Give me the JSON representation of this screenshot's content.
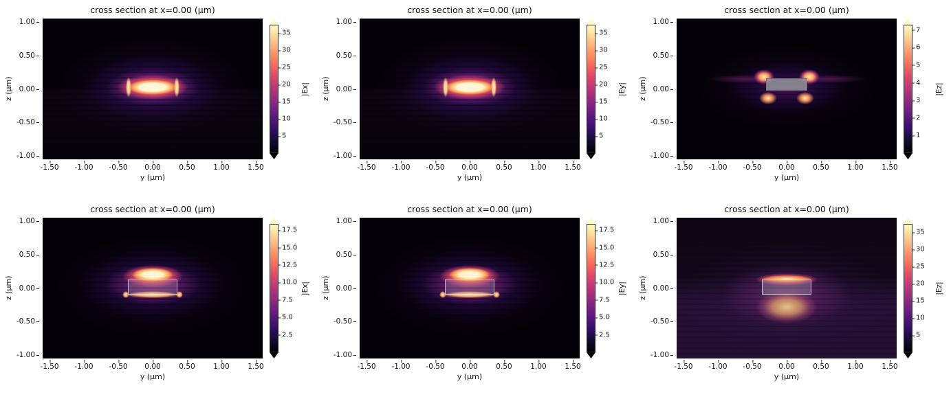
{
  "figure": {
    "background": "#ffffff",
    "rows": 2,
    "cols": 3,
    "colormap": "magma"
  },
  "chart_data": [
    {
      "type": "heatmap",
      "field": "Ex",
      "row": "top",
      "title": "cross section at x=0.00 (μm)",
      "xlabel": "y (μm)",
      "ylabel": "z (μm)",
      "colorbar_label": "|Ex|",
      "xlim": [
        -1.6,
        1.6
      ],
      "ylim": [
        -1.05,
        1.05
      ],
      "xtick_labels": [
        "-1.50",
        "-1.00",
        "-0.50",
        "0.00",
        "0.50",
        "1.00",
        "1.50"
      ],
      "ytick_labels": [
        "1.00",
        "0.50",
        "0.00",
        "-0.50",
        "-1.00"
      ],
      "colorbar_tick_labels": [
        "5",
        "10",
        "15",
        "20",
        "25",
        "30",
        "35"
      ],
      "colorbar_range": [
        0,
        37.5
      ],
      "colorbar_extend": "both",
      "colormap": "magma",
      "description": "Single bright horizontally elongated |Ex| mode lobe saturating near 37 centered at (y=0, z=0), thin vertical hot spots at the core side walls near y=±0.35 μm, faint horizontal interference fringes in the purple halo, black background elsewhere."
    },
    {
      "type": "heatmap",
      "field": "Ey",
      "row": "top",
      "title": "cross section at x=0.00 (μm)",
      "xlabel": "y (μm)",
      "ylabel": "z (μm)",
      "colorbar_label": "|Ey|",
      "xlim": [
        -1.6,
        1.6
      ],
      "ylim": [
        -1.05,
        1.05
      ],
      "xtick_labels": [
        "-1.50",
        "-1.00",
        "-0.50",
        "0.00",
        "0.50",
        "1.00",
        "1.50"
      ],
      "ytick_labels": [
        "1.00",
        "0.50",
        "0.00",
        "-0.50",
        "-1.00"
      ],
      "colorbar_tick_labels": [
        "5",
        "10",
        "15",
        "20",
        "25",
        "30",
        "35"
      ],
      "colorbar_range": [
        0,
        37.5
      ],
      "colorbar_extend": "both",
      "colormap": "magma",
      "description": "Same pattern as |Ex|: bright elongated lobe at the waveguide core centered at (0,0) with edge hot spots at y=±0.35 μm and horizontal fringes in the surrounding purple glow."
    },
    {
      "type": "heatmap",
      "field": "Ez",
      "row": "top",
      "title": "cross section at x=0.00 (μm)",
      "xlabel": "y (μm)",
      "ylabel": "z (μm)",
      "colorbar_label": "|Ez|",
      "xlim": [
        -1.6,
        1.6
      ],
      "ylim": [
        -1.05,
        1.05
      ],
      "xtick_labels": [
        "-1.50",
        "-1.00",
        "-0.50",
        "0.00",
        "0.50",
        "1.00",
        "1.50"
      ],
      "ytick_labels": [
        "1.00",
        "0.50",
        "0.00",
        "-0.50",
        "-1.00"
      ],
      "colorbar_tick_labels": [
        "1",
        "2",
        "3",
        "4",
        "5",
        "6",
        "7"
      ],
      "colorbar_range": [
        0,
        7.3
      ],
      "colorbar_extend": "both",
      "colormap": "magma",
      "overlay_rect_um": {
        "y": [
          -0.3,
          0.3
        ],
        "z": [
          -0.03,
          0.16
        ]
      },
      "description": "Four |Ez| lobes (max ≈7) at the corners of the gray waveguide core outline: two above at y≈±0.33, z≈0.17 μm and two below at y≈±0.27, z≈-0.15 μm, separated by dark nulls along the symmetry axes, with faint purple side streaks."
    },
    {
      "type": "heatmap",
      "field": "Ex",
      "row": "bottom",
      "title": "cross section at x=0.00 (μm)",
      "xlabel": "y (μm)",
      "ylabel": "z (μm)",
      "colorbar_label": "|Ex|",
      "xlim": [
        -1.6,
        1.6
      ],
      "ylim": [
        -1.05,
        1.05
      ],
      "xtick_labels": [
        "-1.50",
        "-1.00",
        "-0.50",
        "0.00",
        "0.50",
        "1.00",
        "1.50"
      ],
      "ytick_labels": [
        "1.00",
        "0.50",
        "0.00",
        "-0.50",
        "-1.00"
      ],
      "colorbar_tick_labels": [
        "2.5",
        "5.0",
        "7.5",
        "10.0",
        "12.5",
        "15.0",
        "17.5"
      ],
      "colorbar_range": [
        0,
        18.4
      ],
      "colorbar_extend": "both",
      "colormap": "magma",
      "overlay_rect_um": {
        "y": [
          -0.36,
          0.36
        ],
        "z": [
          -0.1,
          0.13
        ]
      },
      "description": "Bright lens-shaped |Ex| lobe (max ≈18) sitting just above the translucent waveguide outline near z≈0.2 μm, a thin bright sheet along the bottom face at z≈-0.1 μm with hot spots at the lower corners, horizontal fringes in the purple halo."
    },
    {
      "type": "heatmap",
      "field": "Ey",
      "row": "bottom",
      "title": "cross section at x=0.00 (μm)",
      "xlabel": "y (μm)",
      "ylabel": "z (μm)",
      "colorbar_label": "|Ey|",
      "xlim": [
        -1.6,
        1.6
      ],
      "ylim": [
        -1.05,
        1.05
      ],
      "xtick_labels": [
        "-1.50",
        "-1.00",
        "-0.50",
        "0.00",
        "0.50",
        "1.00",
        "1.50"
      ],
      "ytick_labels": [
        "1.00",
        "0.50",
        "0.00",
        "-0.50",
        "-1.00"
      ],
      "colorbar_tick_labels": [
        "2.5",
        "5.0",
        "7.5",
        "10.0",
        "12.5",
        "15.0",
        "17.5"
      ],
      "colorbar_range": [
        0,
        18.4
      ],
      "colorbar_extend": "both",
      "colormap": "magma",
      "overlay_rect_um": {
        "y": [
          -0.36,
          0.36
        ],
        "z": [
          -0.1,
          0.13
        ]
      },
      "description": "Same as bottom |Ex|: lens-shaped lobe above the waveguide outline, bright bottom-face sheet with corner hot spots, purple fringed halo."
    },
    {
      "type": "heatmap",
      "field": "Ez",
      "row": "bottom",
      "title": "cross section at x=0.00 (μm)",
      "xlabel": "y (μm)",
      "ylabel": "z (μm)",
      "colorbar_label": "|Ez|",
      "xlim": [
        -1.6,
        1.6
      ],
      "ylim": [
        -1.05,
        1.05
      ],
      "xtick_labels": [
        "-1.50",
        "-1.00",
        "-0.50",
        "0.00",
        "0.50",
        "1.00",
        "1.50"
      ],
      "ytick_labels": [
        "1.00",
        "0.50",
        "0.00",
        "-0.50",
        "-1.00"
      ],
      "colorbar_tick_labels": [
        "5",
        "10",
        "15",
        "20",
        "25",
        "30",
        "35"
      ],
      "colorbar_range": [
        0,
        37.5
      ],
      "colorbar_extend": "both",
      "colormap": "magma",
      "overlay_rect_um": {
        "y": [
          -0.36,
          0.36
        ],
        "z": [
          -0.1,
          0.13
        ]
      },
      "description": "Intense |Ez| sheet (max ≈37) along the top face of the waveguide outline at z≈0.13 μm, broad sandy-yellow glow radiating into the substrate below z≈-0.1 μm, and an overall purple background brightest in the lower half."
    }
  ]
}
